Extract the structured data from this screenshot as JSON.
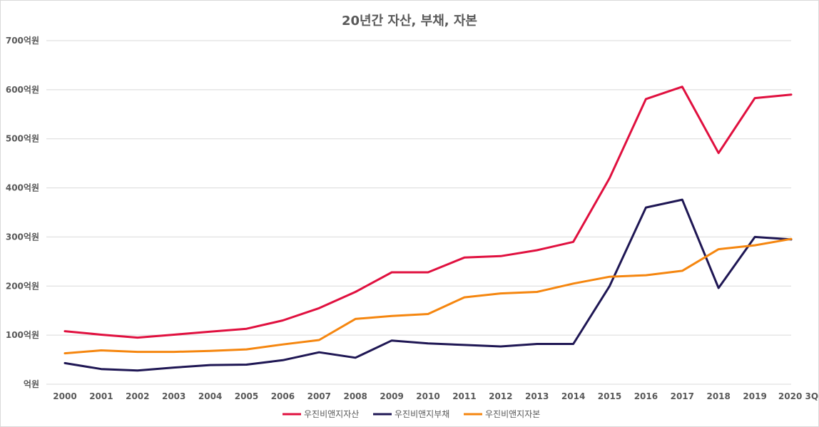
{
  "chart_data": {
    "type": "line",
    "title": "20년간 자산, 부채, 자본",
    "xlabel": "",
    "ylabel": "",
    "categories": [
      "2000",
      "2001",
      "2002",
      "2003",
      "2004",
      "2005",
      "2006",
      "2007",
      "2008",
      "2009",
      "2010",
      "2011",
      "2012",
      "2013",
      "2014",
      "2015",
      "2016",
      "2017",
      "2018",
      "2019",
      "2020 3Q"
    ],
    "ylim": [
      0,
      700
    ],
    "y_ticks": [
      0,
      100,
      200,
      300,
      400,
      500,
      600,
      700
    ],
    "y_tick_labels": [
      "억원",
      "100억원",
      "200억원",
      "300억원",
      "400억원",
      "500억원",
      "600억원",
      "700억원"
    ],
    "grid": true,
    "legend_position": "bottom",
    "series": [
      {
        "name": "우진비앤지자산",
        "color": "#e0103f",
        "values": [
          108,
          101,
          95,
          101,
          107,
          113,
          130,
          155,
          188,
          228,
          228,
          258,
          261,
          273,
          290,
          420,
          581,
          606,
          471,
          583,
          590
        ]
      },
      {
        "name": "우진비앤지부채",
        "color": "#1f1754",
        "values": [
          43,
          31,
          28,
          34,
          39,
          40,
          49,
          65,
          54,
          89,
          83,
          80,
          77,
          82,
          82,
          200,
          360,
          376,
          196,
          300,
          295
        ]
      },
      {
        "name": "우진비앤지자본",
        "color": "#f5860f",
        "values": [
          63,
          69,
          66,
          66,
          68,
          71,
          81,
          90,
          133,
          139,
          143,
          177,
          185,
          188,
          205,
          219,
          222,
          231,
          275,
          283,
          296
        ]
      }
    ]
  }
}
